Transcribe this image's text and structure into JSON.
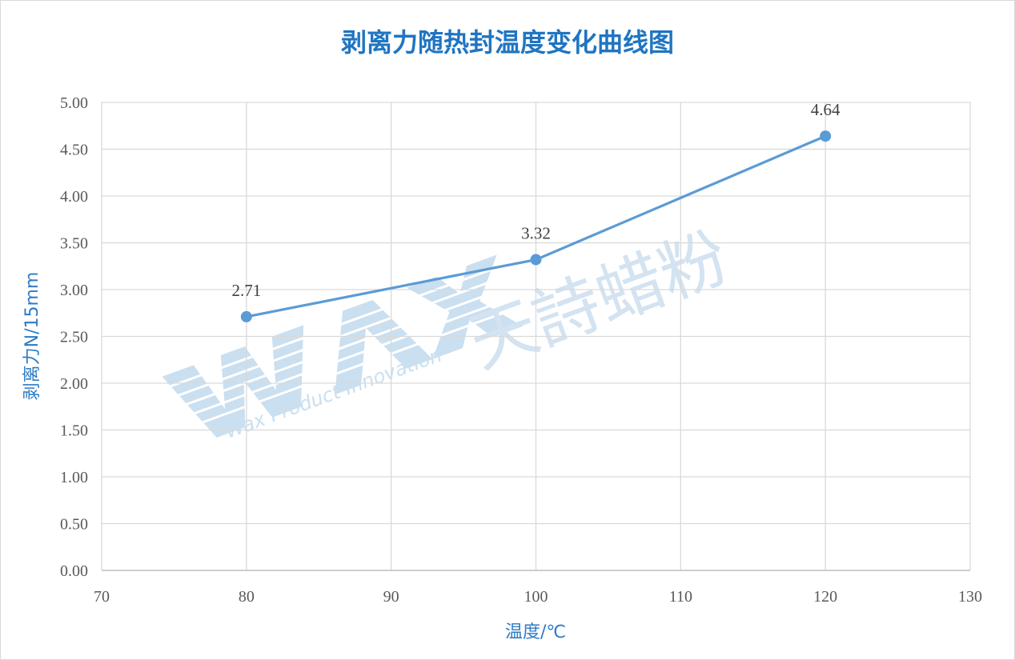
{
  "chart_data": {
    "type": "line",
    "title": "剥离力随热封温度变化曲线图",
    "xlabel": "温度/℃",
    "ylabel": "剥离力N/15mm",
    "xlim": [
      70,
      130
    ],
    "ylim": [
      0,
      5
    ],
    "x_ticks": [
      "70",
      "80",
      "90",
      "100",
      "110",
      "120",
      "130"
    ],
    "y_ticks": [
      "0.00",
      "0.50",
      "1.00",
      "1.50",
      "2.00",
      "2.50",
      "3.00",
      "3.50",
      "4.00",
      "4.50",
      "5.00"
    ],
    "grid": true,
    "series": [
      {
        "x": [
          80,
          100,
          120
        ],
        "y": [
          2.71,
          3.32,
          4.64
        ],
        "labels": [
          "2.71",
          "3.32",
          "4.64"
        ],
        "color": "#5b9bd5"
      }
    ]
  },
  "watermark": {
    "logo_text": "WAX",
    "tagline": "Wax Product Innovation",
    "brand": "天詩蜡粉"
  },
  "colors": {
    "title": "#1f75c2",
    "axis_label": "#2e7bc4",
    "grid": "#d9d9d9",
    "line": "#5b9bd5"
  }
}
